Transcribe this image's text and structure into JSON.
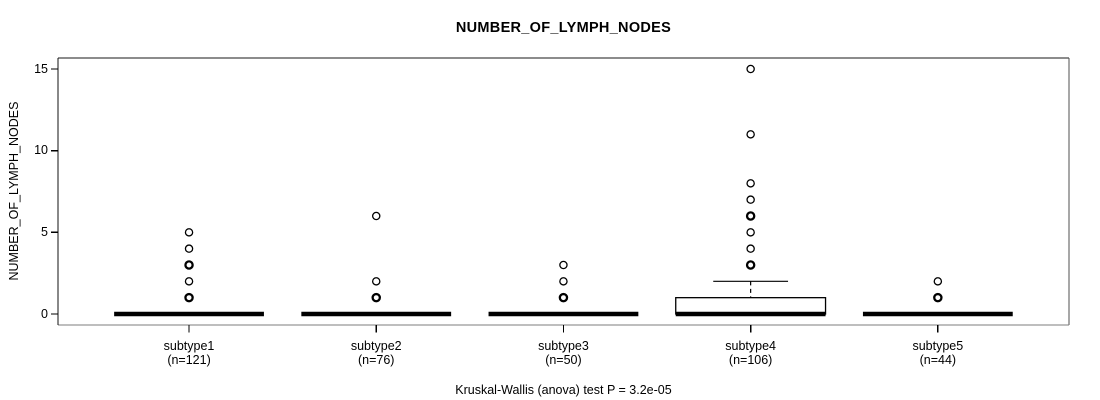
{
  "chart_data": {
    "type": "boxplot",
    "title": "NUMBER_OF_LYMPH_NODES",
    "ylabel": "NUMBER_OF_LYMPH_NODES",
    "xlabel": "",
    "footnote": "Kruskal-Wallis (anova) test P = 3.2e-05",
    "yticks": [
      0,
      5,
      10,
      15
    ],
    "ylim": [
      -0.67,
      15.67
    ],
    "grid": false,
    "legend": null,
    "groups": [
      {
        "label": "subtype1",
        "n_label": "(n=121)",
        "n": 121,
        "median": 0,
        "q1": 0,
        "q3": 0,
        "whisker_low": 0,
        "whisker_high": 0,
        "outliers": [
          1,
          2,
          3,
          4,
          5
        ],
        "bold_outliers": [
          1,
          3
        ]
      },
      {
        "label": "subtype2",
        "n_label": "(n=76)",
        "n": 76,
        "median": 0,
        "q1": 0,
        "q3": 0,
        "whisker_low": 0,
        "whisker_high": 0,
        "outliers": [
          1,
          2,
          6
        ],
        "bold_outliers": [
          1
        ]
      },
      {
        "label": "subtype3",
        "n_label": "(n=50)",
        "n": 50,
        "median": 0,
        "q1": 0,
        "q3": 0,
        "whisker_low": 0,
        "whisker_high": 0,
        "outliers": [
          1,
          2,
          3
        ],
        "bold_outliers": [
          1
        ]
      },
      {
        "label": "subtype4",
        "n_label": "(n=106)",
        "n": 106,
        "median": 0,
        "q1": 0,
        "q3": 1,
        "whisker_low": 0,
        "whisker_high": 2,
        "outliers": [
          3,
          4,
          5,
          6,
          7,
          8,
          11,
          15
        ],
        "bold_outliers": [
          3,
          6
        ]
      },
      {
        "label": "subtype5",
        "n_label": "(n=44)",
        "n": 44,
        "median": 0,
        "q1": 0,
        "q3": 0,
        "whisker_low": 0,
        "whisker_high": 0,
        "outliers": [
          1,
          2
        ],
        "bold_outliers": [
          1
        ]
      }
    ]
  }
}
